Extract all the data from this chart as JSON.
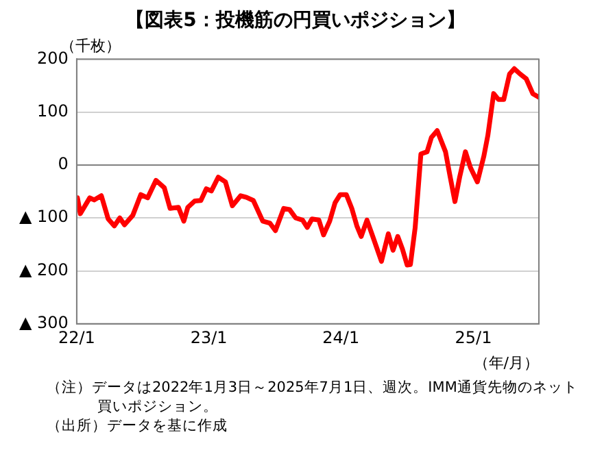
{
  "chart_data": {
    "type": "line",
    "title": "【図表5：投機筋の円買いポジション】",
    "ylabel": "（千枚）",
    "xlabel": "（年/月）",
    "x": [
      "2022-01-03",
      "2022-01-11",
      "2022-02-06",
      "2022-02-18",
      "2022-03-10",
      "2022-03-29",
      "2022-04-15",
      "2022-04-30",
      "2022-05-13",
      "2022-06-05",
      "2022-06-27",
      "2022-07-16",
      "2022-08-08",
      "2022-08-31",
      "2022-09-16",
      "2022-10-09",
      "2022-10-24",
      "2022-11-04",
      "2022-11-23",
      "2022-12-10",
      "2022-12-25",
      "2023-01-08",
      "2023-01-27",
      "2023-02-16",
      "2023-03-07",
      "2023-03-30",
      "2023-04-15",
      "2023-05-04",
      "2023-05-30",
      "2023-06-19",
      "2023-07-04",
      "2023-07-27",
      "2023-08-12",
      "2023-08-29",
      "2023-09-17",
      "2023-09-30",
      "2023-10-13",
      "2023-11-01",
      "2023-11-14",
      "2023-12-01",
      "2023-12-16",
      "2023-12-30",
      "2024-01-16",
      "2024-01-31",
      "2024-02-14",
      "2024-02-26",
      "2024-03-13",
      "2024-03-29",
      "2024-04-22",
      "2024-05-11",
      "2024-05-24",
      "2024-06-06",
      "2024-06-19",
      "2024-07-02",
      "2024-07-11",
      "2024-07-24",
      "2024-08-09",
      "2024-08-26",
      "2024-09-07",
      "2024-09-23",
      "2024-10-16",
      "2024-10-29",
      "2024-11-11",
      "2024-11-24",
      "2024-12-10",
      "2024-12-24",
      "2025-01-12",
      "2025-01-30",
      "2025-02-10",
      "2025-02-26",
      "2025-03-11",
      "2025-03-26",
      "2025-04-11",
      "2025-04-24",
      "2025-05-10",
      "2025-05-27",
      "2025-06-14",
      "2025-07-01"
    ],
    "series": [
      {
        "color": "#ff0000",
        "values": [
          -62,
          -92,
          -62,
          -66,
          -58,
          -102,
          -115,
          -100,
          -113,
          -95,
          -56,
          -62,
          -29,
          -43,
          -82,
          -80,
          -106,
          -80,
          -68,
          -67,
          -45,
          -49,
          -23,
          -32,
          -77,
          -58,
          -61,
          -67,
          -106,
          -110,
          -124,
          -82,
          -84,
          -100,
          -104,
          -118,
          -102,
          -104,
          -132,
          -106,
          -71,
          -56,
          -56,
          -82,
          -115,
          -135,
          -104,
          -135,
          -182,
          -130,
          -161,
          -135,
          -159,
          -189,
          -188,
          -119,
          21,
          25,
          52,
          65,
          25,
          -23,
          -69,
          -23,
          25,
          -5,
          -32,
          17,
          56,
          135,
          124,
          124,
          172,
          182,
          172,
          163,
          135,
          128
        ]
      }
    ],
    "xlim": [
      "2022-01-01",
      "2025-07-01"
    ],
    "xticks": [
      {
        "value": "2022-01-01",
        "label": "22/1"
      },
      {
        "value": "2023-01-01",
        "label": "23/1"
      },
      {
        "value": "2024-01-01",
        "label": "24/1"
      },
      {
        "value": "2025-01-01",
        "label": "25/1"
      }
    ],
    "ylim": [
      -300,
      200
    ],
    "yticks": [
      {
        "value": -300,
        "label": "▲ 300"
      },
      {
        "value": -200,
        "label": "▲ 200"
      },
      {
        "value": -100,
        "label": "▲ 100"
      },
      0,
      100,
      200
    ],
    "grid": "y",
    "legend": false,
    "marker": "none",
    "line_style": "solid",
    "annotations": [
      "（注）データは2022年1月3日～2025年7月1日、週次。IMM通貨先物のネット買いポジション。",
      "（出所）データを基に作成"
    ]
  }
}
